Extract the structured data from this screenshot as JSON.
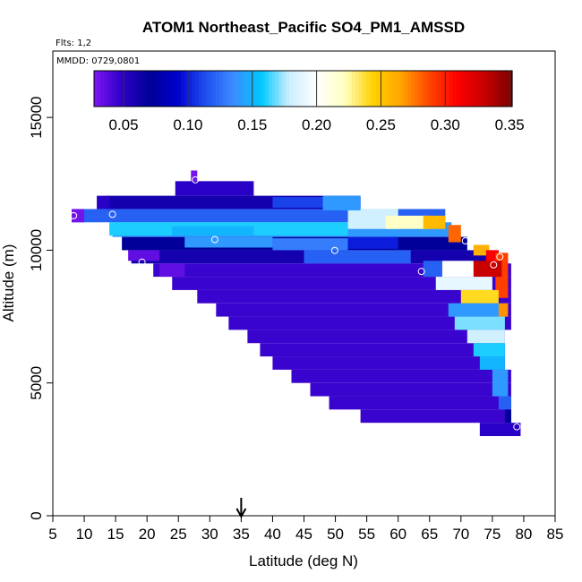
{
  "chart_data": {
    "type": "heatmap",
    "title": "ATOM1 Northeast_Pacific SO4_PM1_AMSSD",
    "subtitle": "Flts: 1,2",
    "annotation": "MMDD: 0729,0801",
    "xlabel": "Latitude (deg N)",
    "ylabel": "Altitude (m)",
    "xlim": [
      5,
      85
    ],
    "ylim": [
      0,
      17500
    ],
    "xticks": [
      "5",
      "10",
      "15",
      "20",
      "25",
      "30",
      "35",
      "40",
      "45",
      "50",
      "55",
      "60",
      "65",
      "70",
      "75",
      "80",
      "85"
    ],
    "yticks": [
      "0",
      "5000",
      "10000",
      "15000"
    ],
    "colorbar": {
      "min": 0.027,
      "max": 0.352,
      "tick_labels": [
        "0.05",
        "0.10",
        "0.15",
        "0.20",
        "0.25",
        "0.30",
        "0.35"
      ],
      "placement": "top",
      "colors": [
        "#7f16f0",
        "#2c00c8",
        "#000097",
        "#0000cd",
        "#1f4ff0",
        "#3c8cff",
        "#00c8ff",
        "#cdeeff",
        "#ffffff",
        "#ffffc0",
        "#ffd200",
        "#ffa500",
        "#ff4800",
        "#ff0000",
        "#c80000",
        "#7a0000"
      ]
    },
    "arrow_marker": {
      "latitude": 35
    },
    "background_color": "#0000b4",
    "cells": [
      {
        "row": "r11.3",
        "lat0": 8,
        "lat1": 67.5,
        "alt0": 11050,
        "alt1": 11550,
        "value": 0.12
      },
      {
        "row": "r11.8",
        "lat0": 13.5,
        "lat1": 54,
        "alt0": 11550,
        "alt1": 12050,
        "value": 0.06
      },
      {
        "row": "r12.4",
        "lat0": 24.5,
        "lat1": 37,
        "alt0": 12050,
        "alt1": 12600,
        "value": 0.05
      },
      {
        "row": "r12.8",
        "lat0": 27,
        "lat1": 28,
        "alt0": 12600,
        "alt1": 13000,
        "value": 0.03
      },
      {
        "row": "r10.8",
        "lat0": 14.5,
        "lat1": 68.5,
        "alt0": 10500,
        "alt1": 11050,
        "value": 0.14
      },
      {
        "row": "r10.3",
        "lat0": 16,
        "lat1": 71,
        "alt0": 10000,
        "alt1": 10500,
        "value": 0.07
      },
      {
        "row": "r9.8",
        "lat0": 17.5,
        "lat1": 76,
        "alt0": 9500,
        "alt1": 10000,
        "value": 0.06
      },
      {
        "row": "r9.2",
        "lat0": 21,
        "lat1": 78,
        "alt0": 9000,
        "alt1": 9500,
        "value": 0.045
      },
      {
        "row": "r8.7",
        "lat0": 24,
        "lat1": 78,
        "alt0": 8500,
        "alt1": 9000,
        "value": 0.045
      },
      {
        "row": "r8.2",
        "lat0": 28,
        "lat1": 78,
        "alt0": 8000,
        "alt1": 8500,
        "value": 0.045
      },
      {
        "row": "r7.7",
        "lat0": 31,
        "lat1": 78,
        "alt0": 7500,
        "alt1": 8000,
        "value": 0.045
      },
      {
        "row": "r7.2",
        "lat0": 33,
        "lat1": 78,
        "alt0": 7000,
        "alt1": 7500,
        "value": 0.045
      },
      {
        "row": "r6.7",
        "lat0": 36,
        "lat1": 77,
        "alt0": 6500,
        "alt1": 7000,
        "value": 0.045
      },
      {
        "row": "r6.2",
        "lat0": 38,
        "lat1": 77,
        "alt0": 6000,
        "alt1": 6500,
        "value": 0.045
      },
      {
        "row": "r5.7",
        "lat0": 40,
        "lat1": 77,
        "alt0": 5500,
        "alt1": 6000,
        "value": 0.045
      },
      {
        "row": "r5.2",
        "lat0": 43,
        "lat1": 78,
        "alt0": 5000,
        "alt1": 5500,
        "value": 0.045
      },
      {
        "row": "r4.7",
        "lat0": 46,
        "lat1": 78,
        "alt0": 4500,
        "alt1": 5000,
        "value": 0.045
      },
      {
        "row": "r4.2",
        "lat0": 49,
        "lat1": 78,
        "alt0": 4000,
        "alt1": 4500,
        "value": 0.045
      },
      {
        "row": "r3.7",
        "lat0": 54,
        "lat1": 78,
        "alt0": 3500,
        "alt1": 4000,
        "value": 0.045
      },
      {
        "row": "r3.2",
        "lat0": 73,
        "lat1": 79.5,
        "alt0": 3000,
        "alt1": 3500,
        "value": 0.05
      }
    ],
    "overlays": [
      {
        "lat0": 14,
        "lat1": 52,
        "alt0": 10550,
        "alt1": 11050,
        "value": 0.16
      },
      {
        "lat0": 24,
        "lat1": 37,
        "alt0": 10550,
        "alt1": 10900,
        "value": 0.15
      },
      {
        "lat0": 52,
        "lat1": 60,
        "alt0": 10800,
        "alt1": 11550,
        "value": 0.18
      },
      {
        "lat0": 58,
        "lat1": 65,
        "alt0": 10800,
        "alt1": 11300,
        "value": 0.22
      },
      {
        "lat0": 64,
        "lat1": 67.5,
        "alt0": 10800,
        "alt1": 11300,
        "value": 0.255
      },
      {
        "lat0": 26,
        "lat1": 40,
        "alt0": 10100,
        "alt1": 10500,
        "value": 0.14
      },
      {
        "lat0": 40,
        "lat1": 52,
        "alt0": 10000,
        "alt1": 10450,
        "value": 0.13
      },
      {
        "lat0": 52,
        "lat1": 60,
        "alt0": 10050,
        "alt1": 10500,
        "value": 0.1
      },
      {
        "lat0": 45,
        "lat1": 62,
        "alt0": 9500,
        "alt1": 10000,
        "value": 0.12
      },
      {
        "lat0": 68,
        "lat1": 70,
        "alt0": 10300,
        "alt1": 10950,
        "value": 0.28
      },
      {
        "lat0": 72,
        "lat1": 74.5,
        "alt0": 9800,
        "alt1": 10200,
        "value": 0.26
      },
      {
        "lat0": 74,
        "lat1": 76,
        "alt0": 9500,
        "alt1": 10000,
        "value": 0.31
      },
      {
        "lat0": 75.5,
        "lat1": 77.5,
        "alt0": 8200,
        "alt1": 9900,
        "value": 0.29
      },
      {
        "lat0": 72,
        "lat1": 76.5,
        "alt0": 9000,
        "alt1": 9600,
        "value": 0.33
      },
      {
        "lat0": 67,
        "lat1": 72,
        "alt0": 9000,
        "alt1": 9600,
        "value": 0.2
      },
      {
        "lat0": 64,
        "lat1": 67,
        "alt0": 9000,
        "alt1": 9600,
        "value": 0.12
      },
      {
        "lat0": 66,
        "lat1": 75,
        "alt0": 8500,
        "alt1": 9000,
        "value": 0.19
      },
      {
        "lat0": 70,
        "lat1": 76,
        "alt0": 8000,
        "alt1": 8500,
        "value": 0.24
      },
      {
        "lat0": 74,
        "lat1": 77.5,
        "alt0": 7500,
        "alt1": 8000,
        "value": 0.27
      },
      {
        "lat0": 68,
        "lat1": 76,
        "alt0": 7500,
        "alt1": 8000,
        "value": 0.14
      },
      {
        "lat0": 69,
        "lat1": 77,
        "alt0": 7000,
        "alt1": 7500,
        "value": 0.17
      },
      {
        "lat0": 71,
        "lat1": 77,
        "alt0": 6500,
        "alt1": 7000,
        "value": 0.18
      },
      {
        "lat0": 72,
        "lat1": 77,
        "alt0": 6000,
        "alt1": 6500,
        "value": 0.16
      },
      {
        "lat0": 73,
        "lat1": 77,
        "alt0": 5500,
        "alt1": 6000,
        "value": 0.15
      },
      {
        "lat0": 75,
        "lat1": 77.5,
        "alt0": 4500,
        "alt1": 5500,
        "value": 0.14
      },
      {
        "lat0": 76,
        "lat1": 78,
        "alt0": 4000,
        "alt1": 4500,
        "value": 0.12
      },
      {
        "lat0": 77,
        "lat1": 78,
        "alt0": 3500,
        "alt1": 4000,
        "value": 0.07
      },
      {
        "lat0": 8,
        "lat1": 10,
        "alt0": 11050,
        "alt1": 11550,
        "value": 0.03
      },
      {
        "lat0": 12,
        "lat1": 14,
        "alt0": 11550,
        "alt1": 12050,
        "value": 0.05
      },
      {
        "lat0": 17,
        "lat1": 22,
        "alt0": 9600,
        "alt1": 10000,
        "value": 0.035
      },
      {
        "lat0": 22,
        "lat1": 26,
        "alt0": 9000,
        "alt1": 9500,
        "value": 0.035
      },
      {
        "lat0": 40,
        "lat1": 54,
        "alt0": 11600,
        "alt1": 12000,
        "value": 0.11
      },
      {
        "lat0": 48,
        "lat1": 54,
        "alt0": 11500,
        "alt1": 12050,
        "value": 0.14
      }
    ],
    "points": [
      {
        "lat": 8.3,
        "alt": 11300
      },
      {
        "lat": 14.5,
        "alt": 11350
      },
      {
        "lat": 27.7,
        "alt": 12650
      },
      {
        "lat": 30.8,
        "alt": 10400
      },
      {
        "lat": 19.2,
        "alt": 9550
      },
      {
        "lat": 49.9,
        "alt": 9990
      },
      {
        "lat": 63.7,
        "alt": 9200
      },
      {
        "lat": 70.7,
        "alt": 10350
      },
      {
        "lat": 75.2,
        "alt": 9450
      },
      {
        "lat": 76.2,
        "alt": 9750
      },
      {
        "lat": 78.9,
        "alt": 3350
      }
    ]
  }
}
